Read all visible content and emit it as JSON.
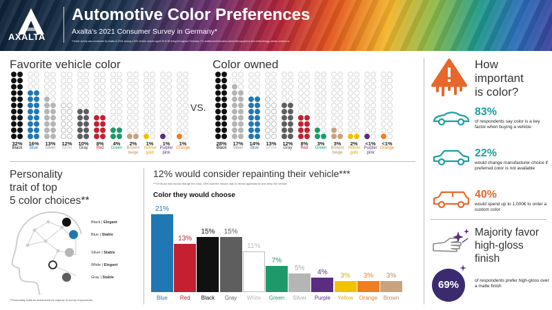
{
  "header": {
    "logo_text": "AXALTA",
    "title": "Automotive Color Preferences",
    "subtitle": "Axalta's 2021 Consumer Survey in Germany*",
    "footnote": "*Online survey was conducted by Axalta in 2021 among 1,000 vehicle owners aged 25 to 80 living throughout Germany. For additional information about demographics and methodology, please contact us."
  },
  "favorite": {
    "title": "Favorite vehicle color",
    "items": [
      {
        "pct": "32%",
        "name": "Black",
        "color": "#111111",
        "count": 32,
        "name_color": "#111111"
      },
      {
        "pct": "16%",
        "name": "Blue",
        "color": "#1f77b4",
        "count": 16,
        "name_color": "#1f77b4"
      },
      {
        "pct": "13%",
        "name": "Silver",
        "color": "#b5b5b5",
        "count": 13,
        "name_color": "#888888"
      },
      {
        "pct": "12%",
        "name": "White",
        "color": "#ffffff",
        "count": 12,
        "name_color": "#bbbbbb"
      },
      {
        "pct": "10%",
        "name": "Gray",
        "color": "#5e5e5e",
        "count": 10,
        "name_color": "#333333"
      },
      {
        "pct": "8%",
        "name": "Red",
        "color": "#c42032",
        "count": 8,
        "name_color": "#c42032"
      },
      {
        "pct": "4%",
        "name": "Green",
        "color": "#1e9a6a",
        "count": 4,
        "name_color": "#1e9a6a"
      },
      {
        "pct": "2%",
        "name": "Brown/ beige",
        "color": "#c8a37d",
        "count": 2,
        "name_color": "#b98f63"
      },
      {
        "pct": "1%",
        "name": "Yellow/ gold",
        "color": "#f2c200",
        "count": 1,
        "name_color": "#d9a800"
      },
      {
        "pct": "1%",
        "name": "Purple/ pink",
        "color": "#5a2d81",
        "count": 1,
        "name_color": "#5a2d81"
      },
      {
        "pct": "1%",
        "name": "Orange",
        "color": "#ef7d22",
        "count": 1,
        "name_color": "#ef7d22"
      }
    ]
  },
  "vs_label": "VS.",
  "owned": {
    "title": "Color owned",
    "items": [
      {
        "pct": "28%",
        "name": "Black",
        "color": "#111111",
        "count": 28,
        "name_color": "#111111"
      },
      {
        "pct": "17%",
        "name": "Silver",
        "color": "#b5b5b5",
        "count": 17,
        "name_color": "#888888"
      },
      {
        "pct": "14%",
        "name": "Blue",
        "color": "#1f77b4",
        "count": 14,
        "name_color": "#1f77b4"
      },
      {
        "pct": "13%",
        "name": "White",
        "color": "#ffffff",
        "count": 13,
        "name_color": "#bbbbbb"
      },
      {
        "pct": "12%",
        "name": "Gray",
        "color": "#5e5e5e",
        "count": 12,
        "name_color": "#333333"
      },
      {
        "pct": "8%",
        "name": "Red",
        "color": "#c42032",
        "count": 8,
        "name_color": "#c42032"
      },
      {
        "pct": "3%",
        "name": "Green",
        "color": "#1e9a6a",
        "count": 3,
        "name_color": "#1e9a6a"
      },
      {
        "pct": "3%",
        "name": "Brown/ beige",
        "color": "#c8a37d",
        "count": 3,
        "name_color": "#b98f63"
      },
      {
        "pct": "2%",
        "name": "Yellow/ gold",
        "color": "#f2c200",
        "count": 2,
        "name_color": "#d9a800"
      },
      {
        "pct": "<1%",
        "name": "Purple/ pink",
        "color": "#5a2d81",
        "count": 1,
        "name_color": "#5a2d81"
      },
      {
        "pct": "<1%",
        "name": "Orange",
        "color": "#ef7d22",
        "count": 1,
        "name_color": "#ef7d22"
      }
    ]
  },
  "personality": {
    "title_line1": "Personality",
    "title_line2": "trait of top",
    "title_line3": "5 color choices**",
    "note": "**Personality traits as determined by majority of survey respondents.",
    "traits": [
      {
        "color_name": "Black",
        "trait": "Elegant",
        "dot": "#111111"
      },
      {
        "color_name": "Blue",
        "trait": "Stable",
        "dot": "#1f77b4"
      },
      {
        "color_name": "Silver",
        "trait": "Stable",
        "dot": "#b5b5b5"
      },
      {
        "color_name": "White",
        "trait": "Elegant",
        "dot": "#ffffff"
      },
      {
        "color_name": "Gray",
        "trait": "Stable",
        "dot": "#5e5e5e"
      }
    ]
  },
  "repaint": {
    "title": "12% would consider repainting their vehicle***",
    "note": "***Of those who would change the color, 53% said the reason was to renew appearance and keep the vehicle.",
    "chart_title": "Color they would choose"
  },
  "chart_data": {
    "type": "bar",
    "title": "Color they would choose",
    "categories": [
      "Blue",
      "Red",
      "Black",
      "Gray",
      "White",
      "Green",
      "Silver",
      "Purple",
      "Yellow",
      "Orange",
      "Brown"
    ],
    "values": [
      21,
      13,
      15,
      15,
      11,
      7,
      5,
      4,
      3,
      3,
      3
    ],
    "value_labels": [
      "21%",
      "13%",
      "15%",
      "15%",
      "11%",
      "7%",
      "5%",
      "4%",
      "3%",
      "3%",
      "3%"
    ],
    "colors": [
      "#1f77b4",
      "#c42032",
      "#111111",
      "#5e5e5e",
      "#ffffff",
      "#1e9a6a",
      "#b5b5b5",
      "#5a2d81",
      "#f2c200",
      "#ef7d22",
      "#c8a37d"
    ],
    "label_colors": [
      "#1f77b4",
      "#c42032",
      "#111111",
      "#5e5e5e",
      "#bbbbbb",
      "#1e9a6a",
      "#aaaaaa",
      "#5a2d81",
      "#e0b000",
      "#ef7d22",
      "#b98f63"
    ],
    "ylim": [
      0,
      22
    ]
  },
  "importance": {
    "title_line1": "How",
    "title_line2": "important",
    "title_line3": "is color?",
    "stats": [
      {
        "pct": "83%",
        "text": "of respondents say color is a key factor when buying a vehicle"
      },
      {
        "pct": "22%",
        "text": "would change manufacturer choice if preferred color is not available"
      },
      {
        "pct": "40%",
        "text": "would spend up to 1,000€ to order a custom color"
      }
    ]
  },
  "gloss": {
    "title_line1": "Majority favor",
    "title_line2": "high-gloss",
    "title_line3": "finish",
    "pct": "69%",
    "text": "of respondents prefer high-gloss over a matte finish"
  },
  "colors": {
    "teal": "#1a9fa2",
    "orange": "#e8672b",
    "purple": "#3c2a6f"
  }
}
